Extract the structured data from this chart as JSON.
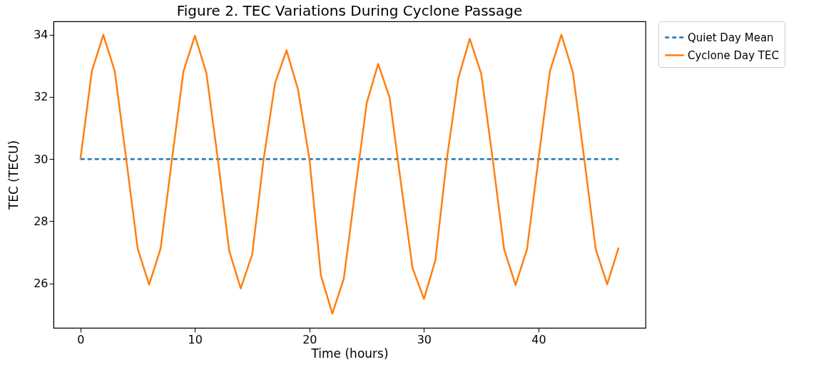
{
  "chart_data": {
    "type": "line",
    "title": "Figure 2. TEC Variations During Cyclone Passage",
    "xlabel": "Time (hours)",
    "ylabel": "TEC (TECU)",
    "xlim": [
      -2.35,
      49.35
    ],
    "xticks": [
      0,
      10,
      20,
      30,
      40
    ],
    "ylim": [
      24.57,
      34.43
    ],
    "yticks": [
      26,
      28,
      30,
      32,
      34
    ],
    "legend": "top right",
    "series": [
      {
        "name": "Quiet Day Mean",
        "color": "#1f77b4",
        "line_style": "dashed",
        "x": [
          0,
          47
        ],
        "values": [
          30,
          30
        ]
      },
      {
        "name": "Cyclone Day TEC",
        "color": "#ff7f0e",
        "line_style": "solid",
        "x": [
          0,
          1,
          2,
          3,
          4,
          5,
          6,
          7,
          8,
          9,
          10,
          11,
          12,
          13,
          14,
          15,
          16,
          17,
          18,
          19,
          20,
          21,
          22,
          23,
          24,
          25,
          26,
          27,
          28,
          29,
          30,
          31,
          32,
          33,
          34,
          35,
          36,
          37,
          38,
          39,
          40,
          41,
          42,
          43,
          44,
          45,
          46,
          47
        ],
        "values": [
          30,
          32.83,
          34,
          32.83,
          30,
          27.12,
          25.96,
          27.12,
          30,
          32.83,
          33.97,
          32.77,
          30,
          27.04,
          25.84,
          26.93,
          30,
          32.45,
          33.5,
          32.24,
          30,
          26.26,
          25.03,
          26.15,
          29,
          31.8,
          33.06,
          31.98,
          29.2,
          26.5,
          25.5,
          26.75,
          30,
          32.6,
          33.87,
          32.75,
          30,
          27.1,
          25.95,
          27.1,
          30,
          32.83,
          34,
          32.8,
          30,
          27.1,
          25.97,
          27.15
        ]
      }
    ]
  }
}
